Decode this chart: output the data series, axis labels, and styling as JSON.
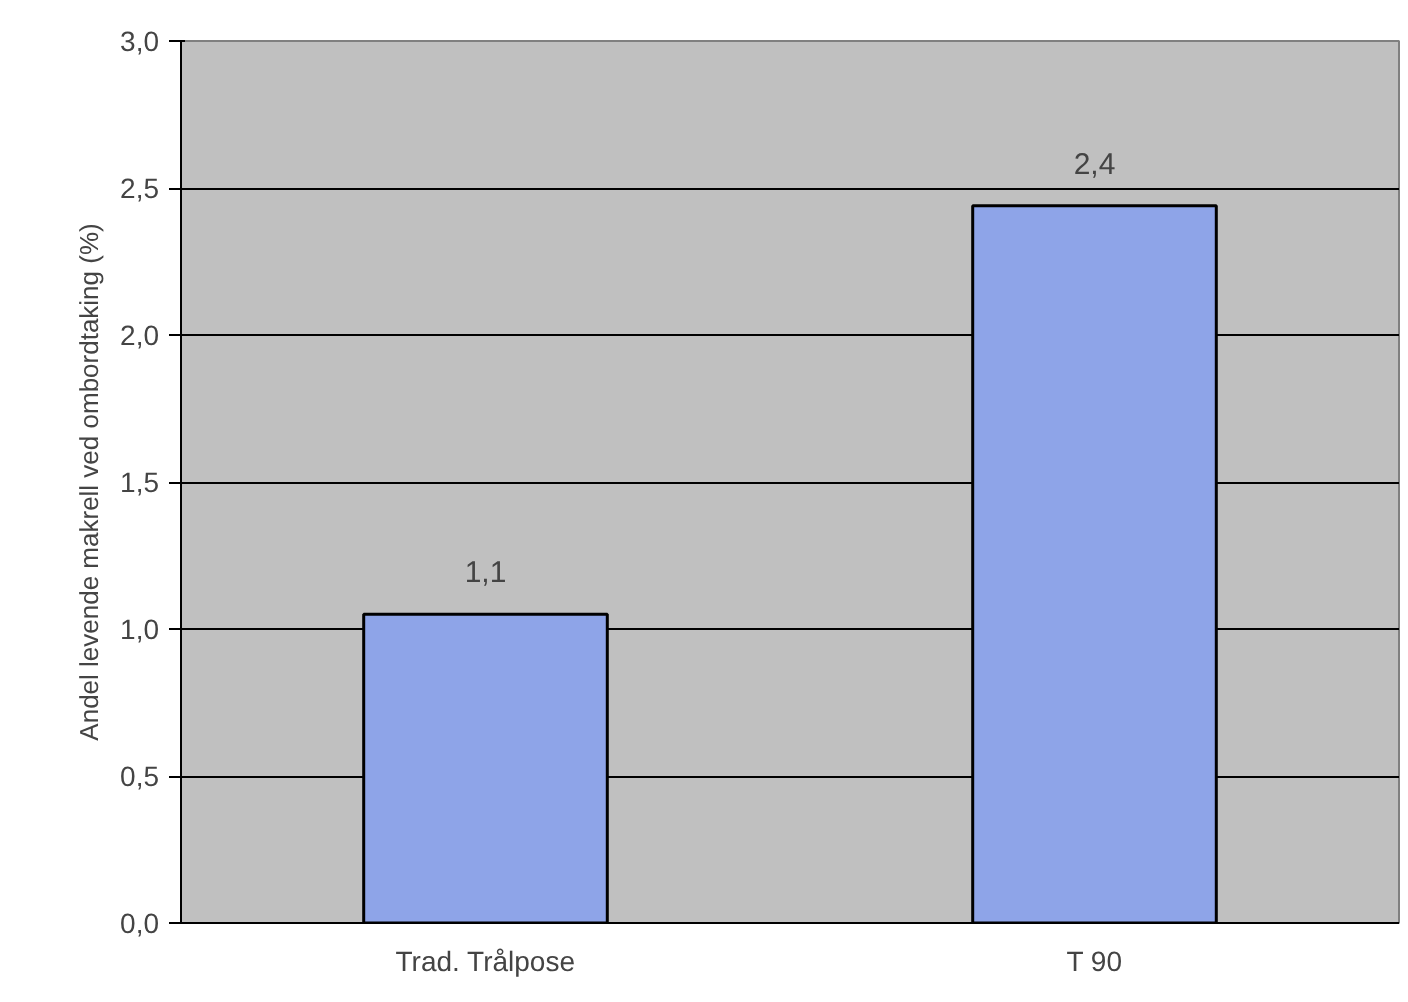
{
  "chart_data": {
    "type": "bar",
    "ylabel": "Andel levende makrell ved ombordtaking (%)",
    "categories": [
      "Trad. Trålpose",
      "T 90"
    ],
    "values": [
      1.05,
      2.44
    ],
    "value_labels": [
      "1,1",
      "2,4"
    ],
    "color": "#8ea4e8",
    "ylim": [
      0,
      3
    ],
    "yticks": [
      {
        "value": 0,
        "label": "0,0"
      },
      {
        "value": 0.5,
        "label": "0,5"
      },
      {
        "value": 1,
        "label": "1,0"
      },
      {
        "value": 1.5,
        "label": "1,5"
      },
      {
        "value": 2,
        "label": "2,0"
      },
      {
        "value": 2.5,
        "label": "2,5"
      },
      {
        "value": 3,
        "label": "3,0"
      }
    ],
    "grid": "y"
  }
}
